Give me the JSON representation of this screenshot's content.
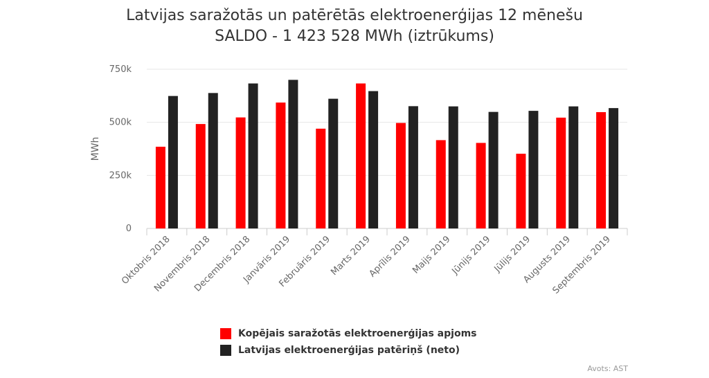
{
  "title_line1": "Latvijas saražotās un patērētās elektroenerģijas 12 mēnešu",
  "title_line2": "SALDO - 1 423 528 MWh (iztrūkums)",
  "credits": "Avots: AST",
  "chart_data": {
    "type": "bar",
    "title": "Latvijas saražotās un patērētās elektroenerģijas 12 mēnešu SALDO - 1 423 528 MWh (iztrūkums)",
    "xlabel": "",
    "ylabel": "MWh",
    "ylim": [
      0,
      750000
    ],
    "yticks": [
      0,
      250000,
      500000,
      750000
    ],
    "ytick_labels": [
      "0",
      "250k",
      "500k",
      "750k"
    ],
    "grid": true,
    "legend_position": "bottom",
    "categories": [
      "Oktobris 2018",
      "Novembris 2018",
      "Decembris 2018",
      "Janvāris 2019",
      "Februāris 2019",
      "Marts 2019",
      "Aprīlis 2019",
      "Maijs 2019",
      "Jūnijs 2019",
      "Jūlijs 2019",
      "Augusts 2019",
      "Septembris 2019"
    ],
    "series": [
      {
        "name": "Kopējais saražotās elektroenerģijas apjoms",
        "color": "#ff0000",
        "values": [
          385000,
          492000,
          523000,
          593000,
          470000,
          683000,
          497000,
          416000,
          403000,
          352000,
          522000,
          548000
        ]
      },
      {
        "name": "Latvijas elektroenerģijas patēriņš (neto)",
        "color": "#222222",
        "values": [
          624000,
          638000,
          683000,
          700000,
          611000,
          647000,
          576000,
          575000,
          549000,
          554000,
          575000,
          567000
        ]
      }
    ]
  }
}
